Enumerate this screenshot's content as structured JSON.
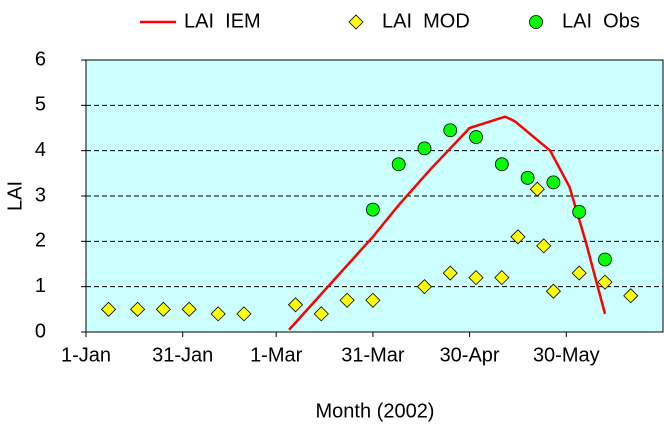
{
  "chart_data": {
    "type": "line",
    "x_label": "Month (2002)",
    "y_label": "LAI",
    "xlim": [
      1,
      180
    ],
    "ylim": [
      0,
      6
    ],
    "xticks": [
      {
        "value": 1,
        "label": "1-Jan"
      },
      {
        "value": 31,
        "label": "31-Jan"
      },
      {
        "value": 60,
        "label": "1-Mar"
      },
      {
        "value": 90,
        "label": "31-Mar"
      },
      {
        "value": 120,
        "label": "30-Apr"
      },
      {
        "value": 150,
        "label": "30-May"
      }
    ],
    "yticks": [
      0,
      1,
      2,
      3,
      4,
      5,
      6
    ],
    "grid": true,
    "plot_background": "#ccffff",
    "legend": "top",
    "series": [
      {
        "name": "LAI  IEM",
        "type": "line",
        "color": "#ff0000",
        "x": [
          64,
          90,
          98,
          108,
          120,
          131,
          134,
          145,
          151,
          156,
          162
        ],
        "values": [
          0.05,
          2.1,
          2.8,
          3.6,
          4.5,
          4.75,
          4.65,
          4.0,
          3.2,
          2.0,
          0.4
        ]
      },
      {
        "name": "LAI  MOD",
        "type": "scatter",
        "marker": "diamond",
        "color": "#ffff00",
        "x": [
          8,
          17,
          25,
          33,
          42,
          50,
          66,
          74,
          82,
          90,
          106,
          114,
          122,
          130,
          135,
          141,
          143,
          146,
          154,
          162,
          170
        ],
        "values": [
          0.5,
          0.5,
          0.5,
          0.5,
          0.4,
          0.4,
          0.6,
          0.4,
          0.7,
          0.7,
          1.0,
          1.3,
          1.2,
          1.2,
          2.1,
          3.15,
          1.9,
          0.9,
          1.3,
          1.1,
          0.8
        ]
      },
      {
        "name": "LAI  Obs",
        "type": "scatter",
        "marker": "circle",
        "color": "#00ff00",
        "x": [
          90,
          98,
          106,
          114,
          122,
          130,
          138,
          146,
          154,
          162
        ],
        "values": [
          2.7,
          3.7,
          4.05,
          4.45,
          4.3,
          3.7,
          3.4,
          3.3,
          2.65,
          1.6
        ]
      }
    ]
  }
}
